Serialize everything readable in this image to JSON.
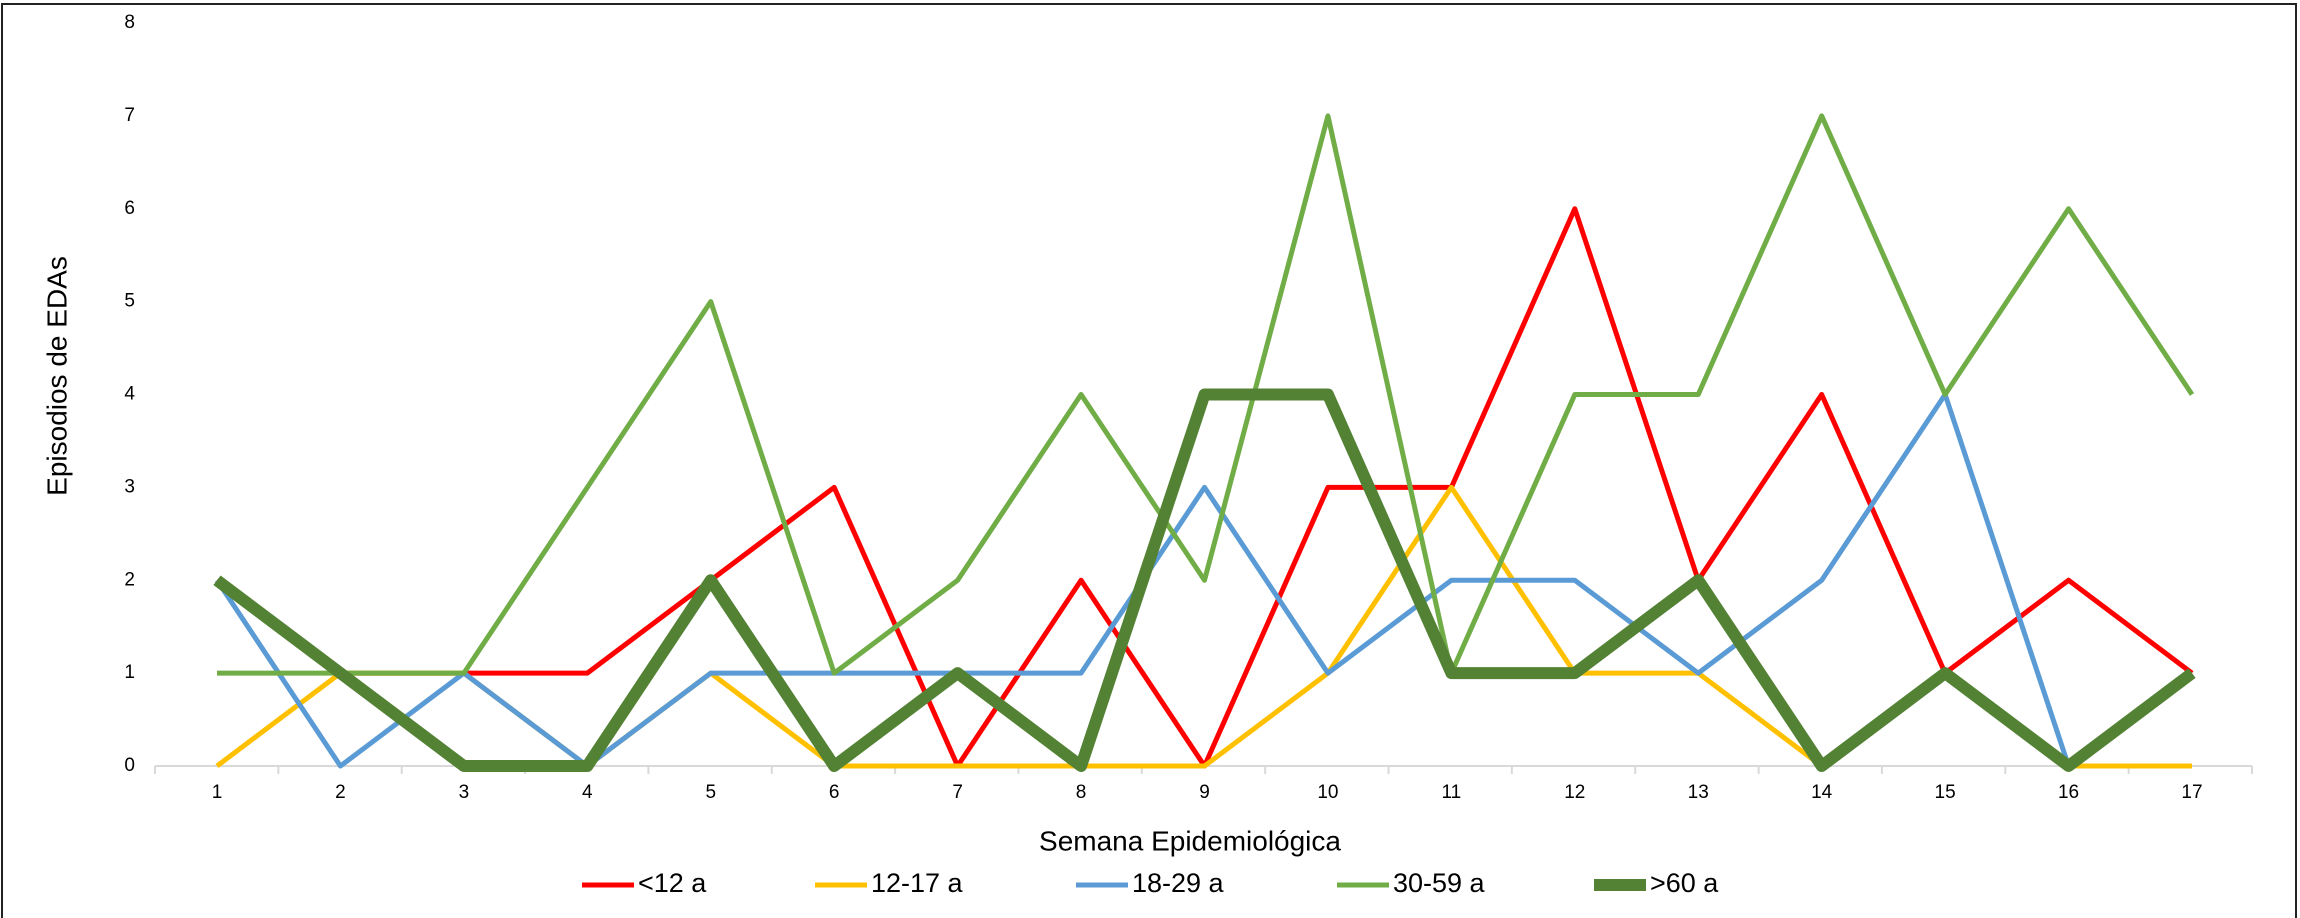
{
  "chart_data": {
    "type": "line",
    "xlabel": "Semana Epidemiológica",
    "ylabel": "Episodios de EDAs",
    "categories": [
      "1",
      "2",
      "3",
      "4",
      "5",
      "6",
      "7",
      "8",
      "9",
      "10",
      "11",
      "12",
      "13",
      "14",
      "15",
      "16",
      "17"
    ],
    "ylim": [
      0,
      8
    ],
    "yticks": [
      0,
      1,
      2,
      3,
      4,
      5,
      6,
      7,
      8
    ],
    "legend": "bottom",
    "series": [
      {
        "name": "<12 a",
        "color": "#ff0000",
        "linewidth": 5,
        "values": [
          2,
          1,
          1,
          1,
          2,
          3,
          0,
          2,
          0,
          3,
          3,
          6,
          2,
          4,
          1,
          2,
          1
        ]
      },
      {
        "name": "12-17 a",
        "color": "#ffc000",
        "linewidth": 5,
        "values": [
          0,
          1,
          1,
          0,
          1,
          0,
          0,
          0,
          0,
          1,
          3,
          1,
          1,
          0,
          1,
          0,
          0
        ]
      },
      {
        "name": "18-29 a",
        "color": "#5b9bd5",
        "linewidth": 5,
        "values": [
          2,
          0,
          1,
          0,
          1,
          1,
          1,
          1,
          3,
          1,
          2,
          2,
          1,
          2,
          4,
          0,
          1
        ]
      },
      {
        "name": "30-59 a",
        "color": "#70ad47",
        "linewidth": 5,
        "values": [
          1,
          1,
          1,
          3,
          5,
          1,
          2,
          4,
          2,
          7,
          1,
          4,
          4,
          7,
          4,
          6,
          4
        ]
      },
      {
        "name": ">60 a",
        "color": "#548235",
        "linewidth": 12,
        "values": [
          2,
          1,
          0,
          0,
          2,
          0,
          1,
          0,
          4,
          4,
          1,
          1,
          2,
          0,
          1,
          0,
          1
        ]
      }
    ]
  }
}
